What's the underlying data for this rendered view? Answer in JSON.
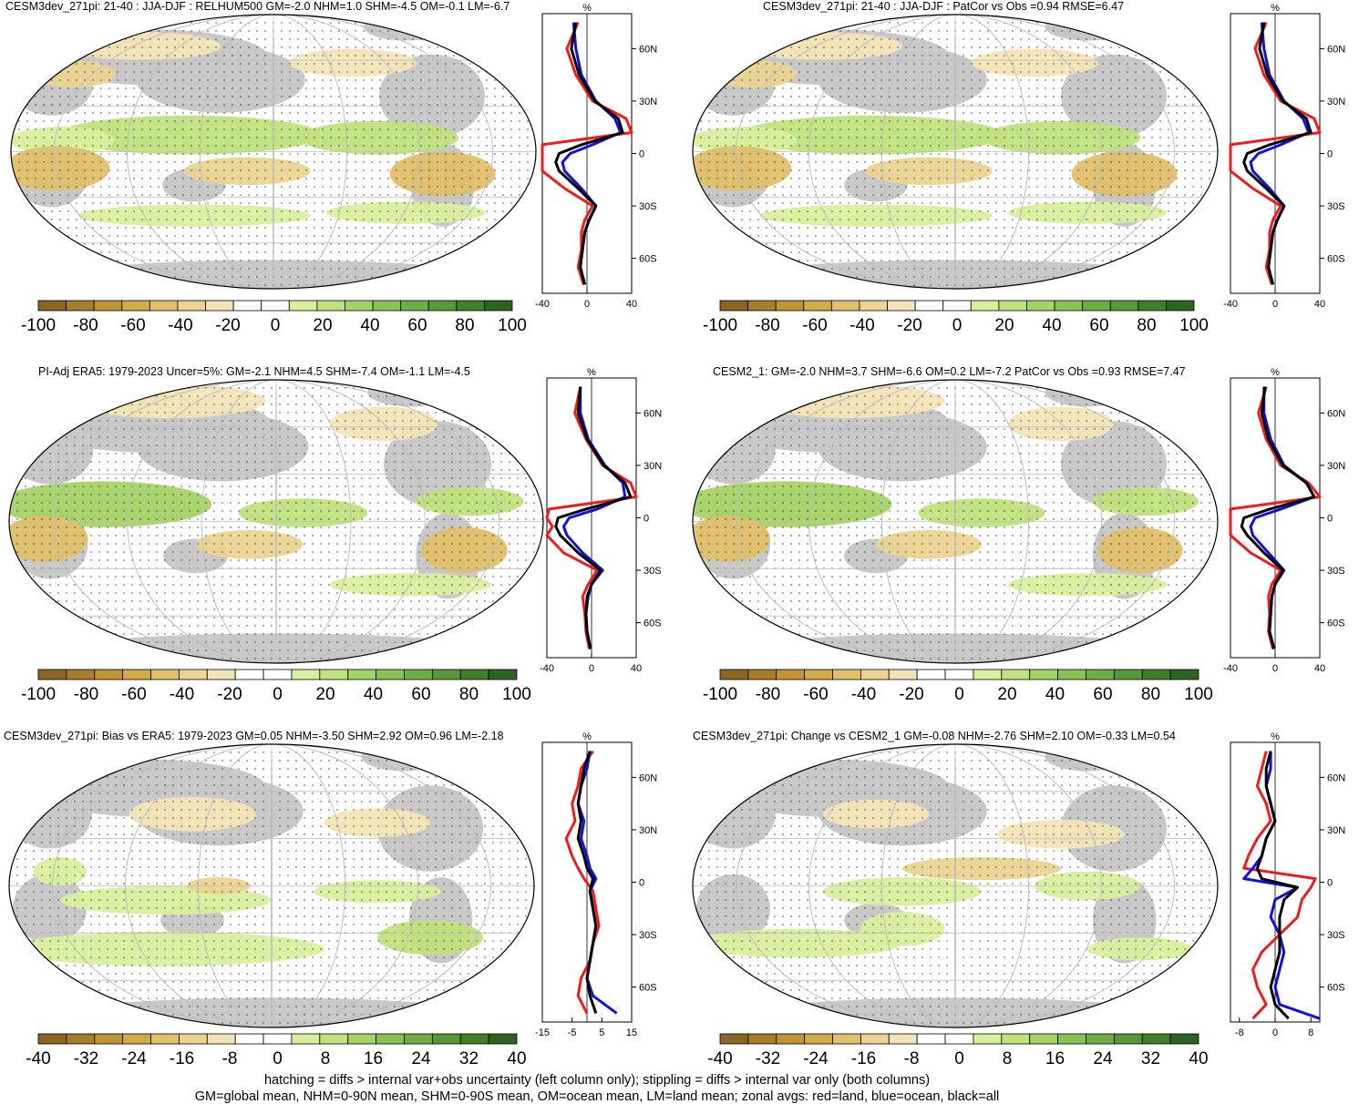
{
  "panels": [
    {
      "title": "CESM3dev_271pi: 21-40 : JJA-DJF : RELHUM500 GM=-2.0 NHM=1.0 SHM=-4.5 OM=-0.1 LM=-6.7",
      "colorbar_labels": [
        "-100",
        "-80",
        "-60",
        "-40",
        "-20",
        "0",
        "20",
        "40",
        "60",
        "80",
        "100"
      ],
      "zonal_x_ticks": [
        "-40",
        "0",
        "40"
      ],
      "zonal_unit": "%",
      "lat_labels": [
        "60N",
        "30N",
        "0",
        "30S",
        "60S"
      ],
      "hatching": true
    },
    {
      "title": "CESM3dev_271pi: 21-40 : JJA-DJF : PatCor vs Obs =0.94 RMSE=6.47",
      "colorbar_labels": [
        "-100",
        "-80",
        "-60",
        "-40",
        "-20",
        "0",
        "20",
        "40",
        "60",
        "80",
        "100"
      ],
      "zonal_x_ticks": [
        "-40",
        "0",
        "40"
      ],
      "zonal_unit": "%",
      "lat_labels": [
        "60N",
        "30N",
        "0",
        "30S",
        "60S"
      ],
      "hatching": false
    },
    {
      "title": "PI-Adj ERA5: 1979-2023 Uncer=5%: GM=-2.1 NHM=4.5 SHM=-7.4 OM=-1.1 LM=-4.5",
      "colorbar_labels": [
        "-100",
        "-80",
        "-60",
        "-40",
        "-20",
        "0",
        "20",
        "40",
        "60",
        "80",
        "100"
      ],
      "zonal_x_ticks": [
        "-40",
        "0",
        "40"
      ],
      "zonal_unit": "%",
      "lat_labels": [
        "60N",
        "30N",
        "0",
        "30S",
        "60S"
      ],
      "hatching": true
    },
    {
      "title": "CESM2_1: GM=-2.0 NHM=3.7 SHM=-6.6 OM=0.2 LM=-7.2 PatCor vs Obs =0.93 RMSE=7.47",
      "colorbar_labels": [
        "-100",
        "-80",
        "-60",
        "-40",
        "-20",
        "0",
        "20",
        "40",
        "60",
        "80",
        "100"
      ],
      "zonal_x_ticks": [
        "-40",
        "0",
        "40"
      ],
      "zonal_unit": "%",
      "lat_labels": [
        "60N",
        "30N",
        "0",
        "30S",
        "60S"
      ],
      "hatching": false
    },
    {
      "title": "CESM3dev_271pi: Bias vs ERA5: 1979-2023 GM=0.05 NHM=-3.50 SHM=2.92 OM=0.96 LM=-2.18",
      "colorbar_labels": [
        "-40",
        "-32",
        "-24",
        "-16",
        "-8",
        "0",
        "8",
        "16",
        "24",
        "32",
        "40"
      ],
      "zonal_x_ticks": [
        "-15",
        "-5",
        "5",
        "15"
      ],
      "zonal_unit": "%",
      "lat_labels": [
        "60N",
        "30N",
        "0",
        "30S",
        "60S"
      ],
      "hatching": true
    },
    {
      "title": "CESM3dev_271pi: Change vs CESM2_1 GM=-0.08 NHM=-2.76 SHM=2.10 OM=-0.33 LM=0.54",
      "colorbar_labels": [
        "-40",
        "-32",
        "-24",
        "-16",
        "-8",
        "0",
        "8",
        "16",
        "24",
        "32",
        "40"
      ],
      "zonal_x_ticks": [
        "-8",
        "0",
        "8"
      ],
      "zonal_unit": "%",
      "lat_labels": [
        "60N",
        "30N",
        "0",
        "30S",
        "60S"
      ],
      "hatching": false
    }
  ],
  "colorbar_colors": [
    "#8c6424",
    "#a77c2a",
    "#c09433",
    "#d3ab46",
    "#e0c06a",
    "#ebd491",
    "#f3e4b7",
    "#ffffff",
    "#ffffff",
    "#d8ef9d",
    "#bfe27c",
    "#a5d366",
    "#89c253",
    "#6ead44",
    "#569836",
    "#3f7f2a",
    "#2c6420"
  ],
  "footer": [
    "hatching = diffs > internal var+obs uncertainty (left column only); stippling = diffs > internal var only (both columns)",
    "GM=global mean, NHM=0-90N mean, SHM=0-90S mean, OM=ocean mean, LM=land mean; zonal avgs: red=land, blue=ocean, black=all"
  ],
  "chart_data": [
    {
      "type": "line",
      "title": "CESM3dev_271pi: 21-40 : JJA-DJF : RELHUM500 GM=-2.0 NHM=1.0 SHM=-4.5 OM=-0.1 LM=-6.7",
      "xlabel": "%",
      "xlim": [
        -40,
        40
      ],
      "ylim": [
        -80,
        80
      ],
      "series": [
        {
          "name": "land",
          "color": "#ee1c1c",
          "lat": [
            75,
            60,
            45,
            30,
            20,
            12,
            5,
            0,
            -5,
            -10,
            -20,
            -30,
            -38,
            -45,
            -55,
            -65,
            -75
          ],
          "values": [
            -8,
            -18,
            -10,
            5,
            35,
            40,
            -40,
            -48,
            -40,
            -45,
            -20,
            5,
            -2,
            -5,
            -5,
            -8,
            -3
          ]
        },
        {
          "name": "ocean",
          "color": "#1010e0",
          "lat": [
            75,
            60,
            45,
            30,
            20,
            12,
            5,
            0,
            -5,
            -10,
            -20,
            -30,
            -38,
            -45,
            -55,
            -65,
            -75
          ],
          "values": [
            -12,
            -10,
            -5,
            8,
            25,
            30,
            5,
            -15,
            -22,
            -20,
            -5,
            8,
            2,
            -2,
            -4,
            -6,
            -2
          ]
        },
        {
          "name": "all",
          "color": "#000000",
          "lat": [
            75,
            60,
            45,
            30,
            20,
            12,
            5,
            0,
            -5,
            -10,
            -20,
            -30,
            -38,
            -45,
            -55,
            -65,
            -75
          ],
          "values": [
            -10,
            -14,
            -7,
            7,
            28,
            32,
            -5,
            -25,
            -28,
            -25,
            -8,
            8,
            2,
            -2,
            -4,
            -6,
            -2
          ]
        }
      ]
    },
    {
      "type": "line",
      "title": "CESM3dev_271pi: 21-40 : JJA-DJF : PatCor vs Obs =0.94 RMSE=6.47",
      "xlabel": "%",
      "xlim": [
        -40,
        40
      ],
      "ylim": [
        -80,
        80
      ],
      "series": [
        {
          "name": "land",
          "color": "#ee1c1c",
          "lat": [
            75,
            60,
            45,
            30,
            20,
            12,
            5,
            0,
            -5,
            -10,
            -20,
            -30,
            -38,
            -45,
            -55,
            -65,
            -75
          ],
          "values": [
            -8,
            -18,
            -10,
            5,
            35,
            40,
            -40,
            -48,
            -40,
            -45,
            -20,
            5,
            -2,
            -5,
            -5,
            -8,
            -3
          ]
        },
        {
          "name": "ocean",
          "color": "#1010e0",
          "lat": [
            75,
            60,
            45,
            30,
            20,
            12,
            5,
            0,
            -5,
            -10,
            -20,
            -30,
            -38,
            -45,
            -55,
            -65,
            -75
          ],
          "values": [
            -12,
            -10,
            -5,
            8,
            25,
            30,
            5,
            -15,
            -22,
            -20,
            -5,
            8,
            2,
            -2,
            -4,
            -6,
            -2
          ]
        },
        {
          "name": "all",
          "color": "#000000",
          "lat": [
            75,
            60,
            45,
            30,
            20,
            12,
            5,
            0,
            -5,
            -10,
            -20,
            -30,
            -38,
            -45,
            -55,
            -65,
            -75
          ],
          "values": [
            -10,
            -14,
            -7,
            7,
            28,
            32,
            -5,
            -25,
            -28,
            -25,
            -8,
            8,
            2,
            -2,
            -4,
            -6,
            -2
          ]
        }
      ]
    },
    {
      "type": "line",
      "title": "PI-Adj ERA5: 1979-2023 Uncer=5%: GM=-2.1 NHM=4.5 SHM=-7.4 OM=-1.1 LM=-4.5",
      "xlabel": "%",
      "xlim": [
        -40,
        40
      ],
      "ylim": [
        -80,
        80
      ],
      "series": [
        {
          "name": "land",
          "color": "#ee1c1c",
          "lat": [
            75,
            60,
            45,
            30,
            20,
            12,
            5,
            0,
            -5,
            -10,
            -20,
            -30,
            -38,
            -45,
            -55,
            -65,
            -75
          ],
          "values": [
            -10,
            -15,
            -5,
            10,
            35,
            45,
            -38,
            -50,
            -35,
            -40,
            -25,
            5,
            -3,
            -8,
            -6,
            -5,
            -2
          ]
        },
        {
          "name": "ocean",
          "color": "#1010e0",
          "lat": [
            75,
            60,
            45,
            30,
            20,
            12,
            5,
            0,
            -5,
            -10,
            -20,
            -30,
            -38,
            -45,
            -55,
            -65,
            -75
          ],
          "values": [
            -10,
            -10,
            -3,
            12,
            28,
            30,
            5,
            -20,
            -25,
            -22,
            -8,
            10,
            0,
            -3,
            -5,
            -4,
            -1
          ]
        },
        {
          "name": "all",
          "color": "#000000",
          "lat": [
            75,
            60,
            45,
            30,
            20,
            12,
            5,
            0,
            -5,
            -10,
            -20,
            -30,
            -38,
            -45,
            -55,
            -65,
            -75
          ],
          "values": [
            -10,
            -12,
            -4,
            11,
            30,
            35,
            -5,
            -30,
            -32,
            -28,
            -12,
            8,
            0,
            -4,
            -5,
            -4,
            -1
          ]
        }
      ]
    },
    {
      "type": "line",
      "title": "CESM2_1: GM=-2.0 NHM=3.7 SHM=-6.6 OM=0.2 LM=-7.2 PatCor vs Obs =0.93 RMSE=7.47",
      "xlabel": "%",
      "xlim": [
        -40,
        40
      ],
      "ylim": [
        -80,
        80
      ],
      "series": [
        {
          "name": "land",
          "color": "#ee1c1c",
          "lat": [
            75,
            60,
            45,
            30,
            20,
            12,
            5,
            0,
            -5,
            -10,
            -20,
            -30,
            -38,
            -45,
            -55,
            -65,
            -75
          ],
          "values": [
            -8,
            -15,
            -8,
            5,
            30,
            40,
            -40,
            -48,
            -40,
            -40,
            -22,
            5,
            -3,
            -6,
            -5,
            -6,
            -2
          ]
        },
        {
          "name": "ocean",
          "color": "#1010e0",
          "lat": [
            75,
            60,
            45,
            30,
            20,
            12,
            5,
            0,
            -5,
            -10,
            -20,
            -30,
            -38,
            -45,
            -55,
            -65,
            -75
          ],
          "values": [
            -10,
            -10,
            -4,
            8,
            28,
            35,
            5,
            -18,
            -22,
            -20,
            -6,
            8,
            0,
            -3,
            -4,
            -5,
            -1
          ]
        },
        {
          "name": "all",
          "color": "#000000",
          "lat": [
            75,
            60,
            45,
            30,
            20,
            12,
            5,
            0,
            -5,
            -10,
            -20,
            -30,
            -38,
            -45,
            -55,
            -65,
            -75
          ],
          "values": [
            -9,
            -12,
            -6,
            7,
            28,
            35,
            -5,
            -28,
            -30,
            -25,
            -10,
            7,
            0,
            -3,
            -4,
            -5,
            -1
          ]
        }
      ]
    },
    {
      "type": "line",
      "title": "CESM3dev_271pi: Bias vs ERA5: 1979-2023 GM=0.05 NHM=-3.50 SHM=2.92 OM=0.96 LM=-2.18",
      "xlabel": "%",
      "xlim": [
        -15,
        15
      ],
      "ylim": [
        -80,
        80
      ],
      "series": [
        {
          "name": "land",
          "color": "#ee1c1c",
          "lat": [
            75,
            65,
            55,
            45,
            35,
            25,
            15,
            8,
            2,
            -5,
            -15,
            -25,
            -35,
            -45,
            -55,
            -65,
            -75
          ],
          "values": [
            2,
            -2,
            -3,
            -5,
            -4,
            -7,
            -5,
            -3,
            -1,
            2,
            3,
            4,
            2,
            1,
            -2,
            -3,
            0
          ]
        },
        {
          "name": "ocean",
          "color": "#1010e0",
          "lat": [
            75,
            65,
            55,
            45,
            35,
            25,
            15,
            8,
            2,
            -5,
            -15,
            -25,
            -35,
            -45,
            -55,
            -65,
            -75
          ],
          "values": [
            1,
            0,
            -2,
            -3,
            -1,
            -2,
            0,
            1,
            3,
            1,
            2,
            3,
            2,
            1,
            0,
            2,
            10
          ]
        },
        {
          "name": "all",
          "color": "#000000",
          "lat": [
            75,
            65,
            55,
            45,
            35,
            25,
            15,
            8,
            2,
            -5,
            -15,
            -25,
            -35,
            -45,
            -55,
            -65,
            -75
          ],
          "values": [
            1,
            -1,
            -2,
            -3,
            -2,
            -3,
            -1,
            0,
            2,
            1,
            2,
            3,
            2,
            1,
            0,
            1,
            3
          ]
        }
      ]
    },
    {
      "type": "line",
      "title": "CESM3dev_271pi: Change vs CESM2_1 GM=-0.08 NHM=-2.76 SHM=2.10 OM=-0.33 LM=0.54",
      "xlabel": "%",
      "xlim": [
        -10,
        10
      ],
      "ylim": [
        -80,
        80
      ],
      "series": [
        {
          "name": "land",
          "color": "#ee1c1c",
          "lat": [
            75,
            65,
            55,
            45,
            35,
            25,
            15,
            8,
            2,
            -3,
            -10,
            -20,
            -30,
            -40,
            -50,
            -60,
            -70,
            -78
          ],
          "values": [
            -2,
            -3,
            -4,
            -2,
            -1,
            -4,
            -6,
            -7,
            9,
            8,
            6,
            5,
            1,
            -3,
            -5,
            -4,
            -2,
            -5
          ]
        },
        {
          "name": "ocean",
          "color": "#1010e0",
          "lat": [
            75,
            65,
            55,
            45,
            35,
            25,
            15,
            8,
            2,
            -3,
            -10,
            -20,
            -30,
            -40,
            -50,
            -60,
            -70,
            -78
          ],
          "values": [
            -1,
            -1,
            -2,
            -1,
            0,
            -2,
            -3,
            -5,
            -7,
            5,
            0,
            -1,
            1,
            2,
            1,
            0,
            1,
            10
          ]
        },
        {
          "name": "all",
          "color": "#000000",
          "lat": [
            75,
            65,
            55,
            45,
            35,
            25,
            15,
            8,
            2,
            -3,
            -10,
            -20,
            -30,
            -40,
            -50,
            -60,
            -70,
            -78
          ],
          "values": [
            -1,
            -2,
            -2,
            -1,
            0,
            -2,
            -3,
            -4,
            -3,
            5,
            2,
            1,
            1,
            1,
            0,
            -1,
            0,
            3
          ]
        }
      ]
    }
  ]
}
